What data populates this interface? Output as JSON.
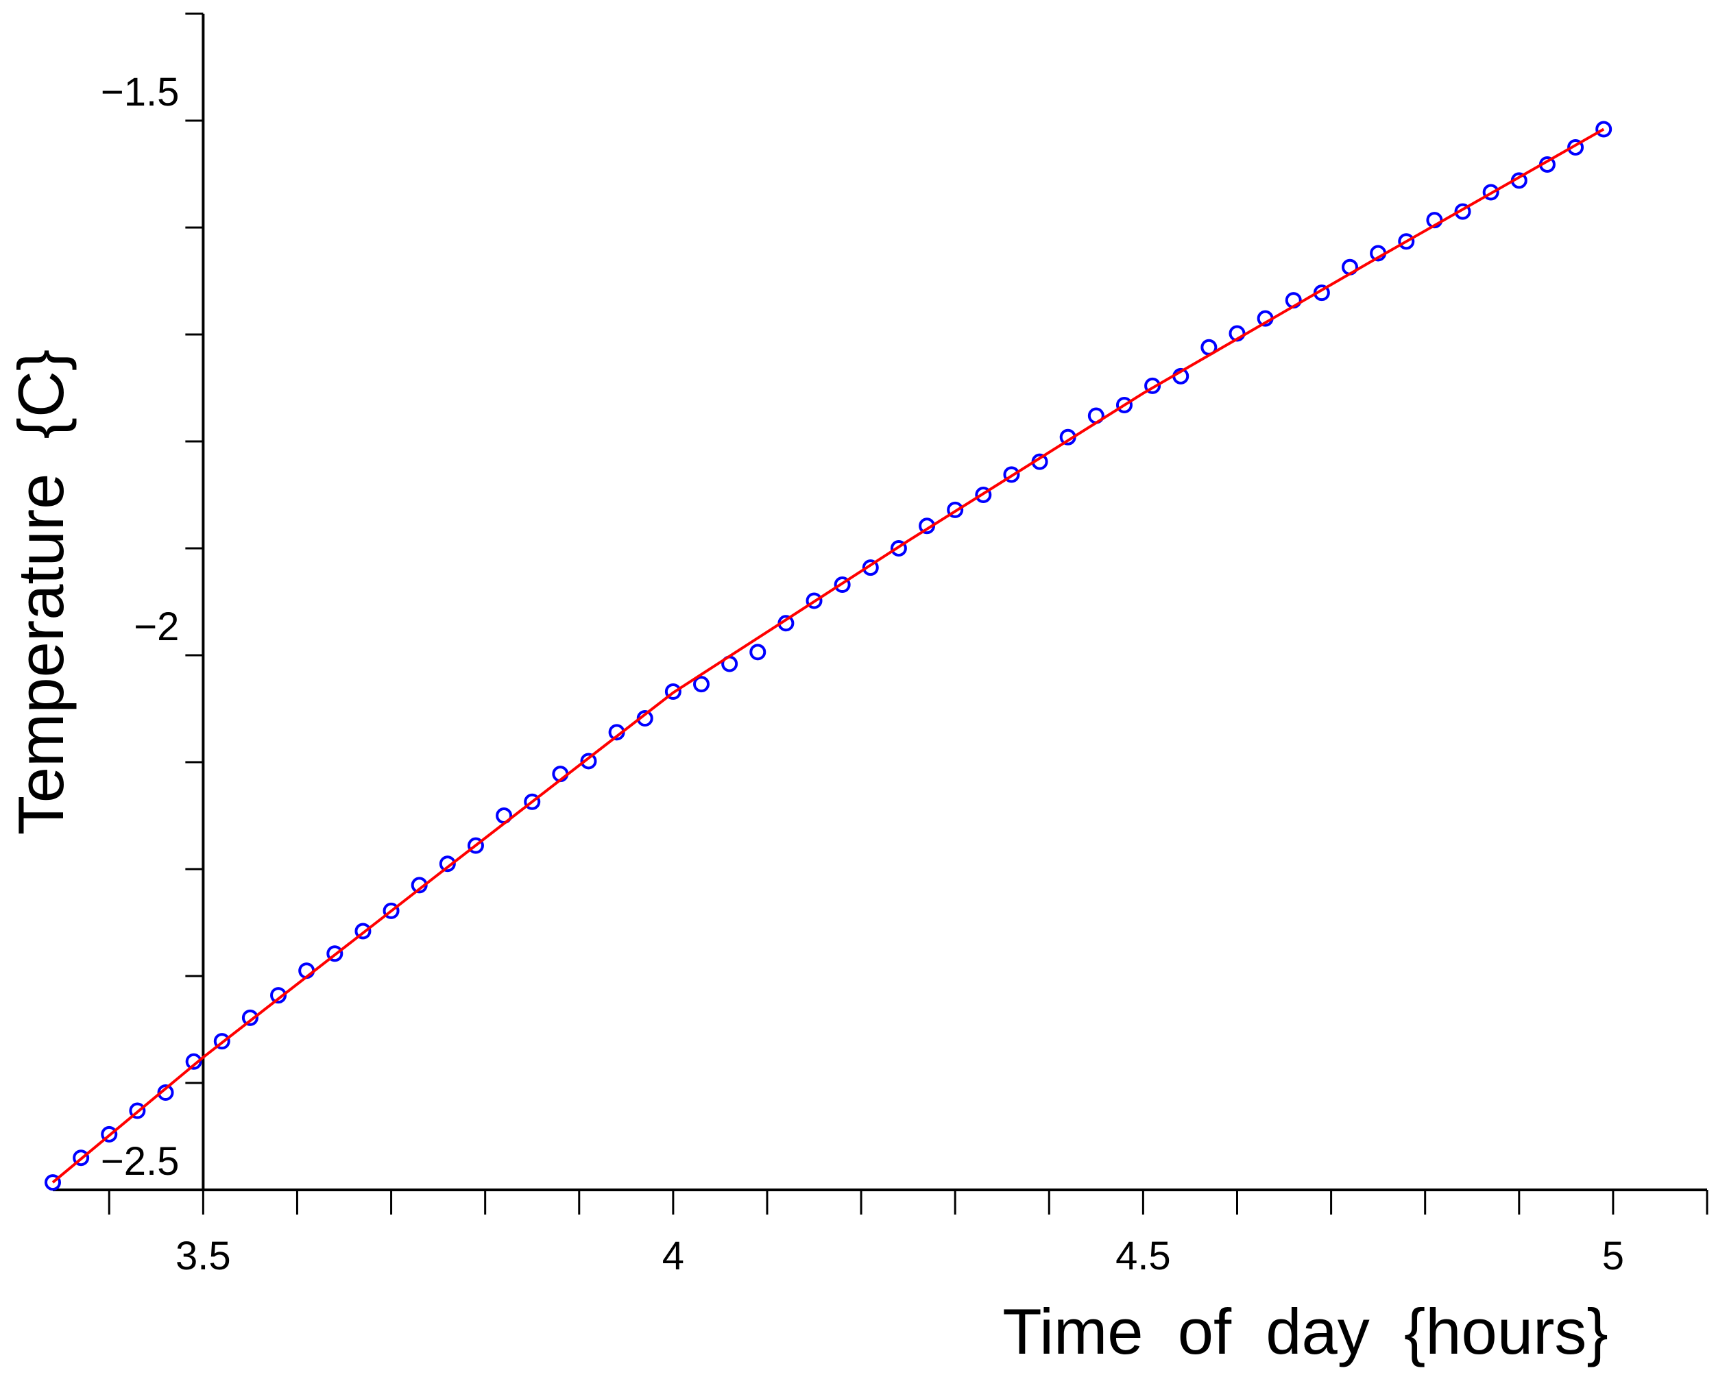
{
  "chart_data": {
    "type": "scatter",
    "xlabel": "Time of day {hours}",
    "ylabel": "Temperature {C}",
    "xlim": [
      3.34,
      5.1
    ],
    "ylim": [
      -2.5,
      -1.4
    ],
    "xticks": [
      3.5,
      4,
      4.5,
      5
    ],
    "xminorticks": [
      3.4,
      3.6,
      3.7,
      3.8,
      3.9,
      4.1,
      4.2,
      4.3,
      4.4,
      4.6,
      4.7,
      4.8,
      4.9,
      5.1
    ],
    "yticks": [
      {
        "value": -2.5,
        "label": "−2.5"
      },
      {
        "value": -2,
        "label": "−2"
      },
      {
        "value": -1.5,
        "label": "−1.5"
      }
    ],
    "yminorticks": [
      -2.4,
      -2.3,
      -2.2,
      -2.1,
      -1.9,
      -1.8,
      -1.7,
      -1.6,
      -1.4
    ],
    "axis_origin": [
      3.5,
      -2.5
    ],
    "series": [
      {
        "mode": "markers",
        "color": "#0000ff",
        "x": [
          3.34,
          3.37,
          3.4,
          3.43,
          3.46,
          3.49,
          3.52,
          3.55,
          3.58,
          3.61,
          3.64,
          3.67,
          3.7,
          3.73,
          3.76,
          3.79,
          3.82,
          3.85,
          3.88,
          3.91,
          3.94,
          3.97,
          4,
          4.03,
          4.06,
          4.09,
          4.12,
          4.15,
          4.18,
          4.21,
          4.24,
          4.27,
          4.3,
          4.33,
          4.36,
          4.39,
          4.42,
          4.45,
          4.48,
          4.51,
          4.54,
          4.57,
          4.6,
          4.63,
          4.66,
          4.69,
          4.72,
          4.75,
          4.78,
          4.81,
          4.84,
          4.87,
          4.9,
          4.93,
          4.96,
          4.99
        ],
        "values": [
          -2.493,
          -2.47,
          -2.448,
          -2.426,
          -2.409,
          -2.38,
          -2.361,
          -2.339,
          -2.318,
          -2.295,
          -2.279,
          -2.258,
          -2.239,
          -2.215,
          -2.195,
          -2.178,
          -2.15,
          -2.137,
          -2.111,
          -2.099,
          -2.072,
          -2.059,
          -2.034,
          -2.027,
          -2.008,
          -1.997,
          -1.97,
          -1.949,
          -1.934,
          -1.918,
          -1.9,
          -1.879,
          -1.864,
          -1.85,
          -1.831,
          -1.819,
          -1.796,
          -1.776,
          -1.766,
          -1.748,
          -1.739,
          -1.712,
          -1.699,
          -1.685,
          -1.668,
          -1.661,
          -1.637,
          -1.624,
          -1.613,
          -1.593,
          -1.585,
          -1.567,
          -1.556,
          -1.541,
          -1.525,
          -1.508
        ]
      },
      {
        "mode": "line",
        "color": "#ff0000",
        "x": [
          3.34,
          3.5,
          3.75,
          4.0,
          4.25,
          4.5,
          4.75,
          4.99
        ],
        "values": [
          -2.493,
          -2.376,
          -2.205,
          -2.035,
          -1.893,
          -1.755,
          -1.628,
          -1.508
        ]
      }
    ]
  }
}
